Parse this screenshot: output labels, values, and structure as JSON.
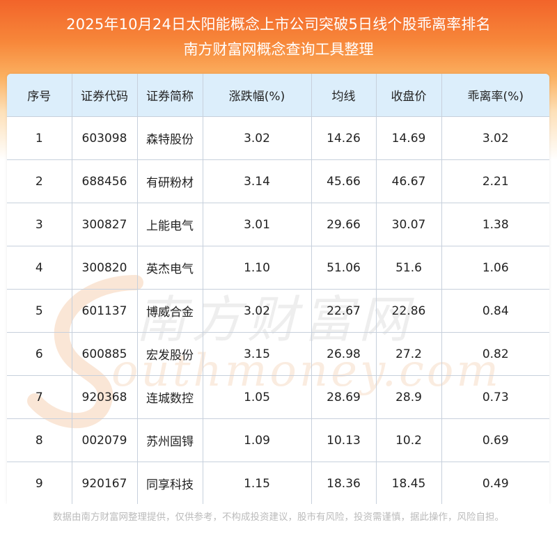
{
  "header": {
    "title_line1": "2025年10月24日太阳能概念上市公司突破5日线个股乖离率排名",
    "title_line2": "南方财富网概念查询工具整理"
  },
  "table": {
    "columns": [
      "序号",
      "证券代码",
      "证券简称",
      "涨跌幅(%)",
      "均线",
      "收盘价",
      "乖离率(%)"
    ],
    "rows": [
      [
        "1",
        "603098",
        "森特股份",
        "3.02",
        "14.26",
        "14.69",
        "3.02"
      ],
      [
        "2",
        "688456",
        "有研粉材",
        "3.14",
        "45.66",
        "46.67",
        "2.21"
      ],
      [
        "3",
        "300827",
        "上能电气",
        "3.01",
        "29.66",
        "30.07",
        "1.38"
      ],
      [
        "4",
        "300820",
        "英杰电气",
        "1.10",
        "51.06",
        "51.6",
        "1.06"
      ],
      [
        "5",
        "601137",
        "博威合金",
        "3.02",
        "22.67",
        "22.86",
        "0.84"
      ],
      [
        "6",
        "600885",
        "宏发股份",
        "3.15",
        "26.98",
        "27.2",
        "0.82"
      ],
      [
        "7",
        "920368",
        "连城数控",
        "1.05",
        "28.69",
        "28.9",
        "0.73"
      ],
      [
        "8",
        "002079",
        "苏州固锝",
        "1.09",
        "10.13",
        "10.2",
        "0.69"
      ],
      [
        "9",
        "920167",
        "同享科技",
        "1.15",
        "18.36",
        "18.45",
        "0.49"
      ]
    ]
  },
  "watermark": {
    "cn_text": "南方财富网",
    "en_text": "outhmoney.com"
  },
  "footer": {
    "disclaimer": "数据由南方财富网整理提供，仅供参考，不构成投资建议，股市有风险，投资需谨慎，据此操作，风险自担。"
  },
  "colors": {
    "header_top": "#f2642a",
    "header_bottom": "#fbb060",
    "table_header_bg": "#dceefb",
    "border": "#c7d0dc",
    "watermark": "#f3c9a8"
  }
}
